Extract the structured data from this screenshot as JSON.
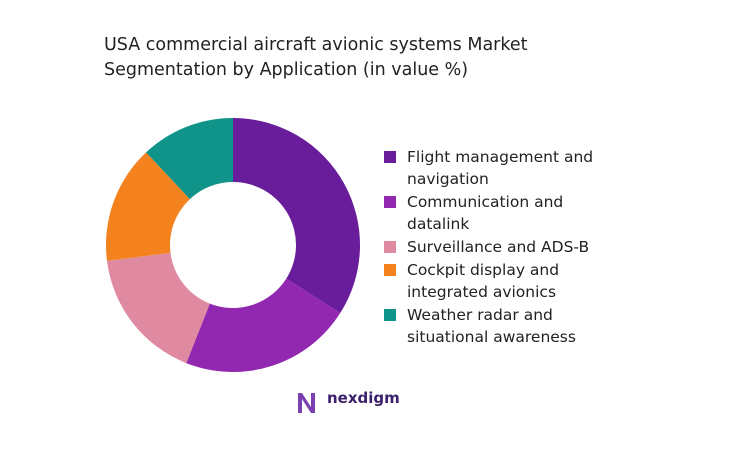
{
  "chart_data": {
    "type": "pie",
    "title": "USA commercial aircraft avionic systems Market Segmentation by Application (in value %)",
    "categories": [
      "Flight management and navigation",
      "Communication and datalink",
      "Surveillance and ADS-B",
      "Cockpit display and integrated avionics",
      "Weather radar and situational awareness"
    ],
    "values": [
      34,
      22,
      17,
      15,
      12
    ],
    "colors": [
      "#6a1d9a",
      "#9228b0",
      "#e08aa2",
      "#f4821f",
      "#10948a"
    ],
    "donut": true
  },
  "brand": "nexdigm"
}
